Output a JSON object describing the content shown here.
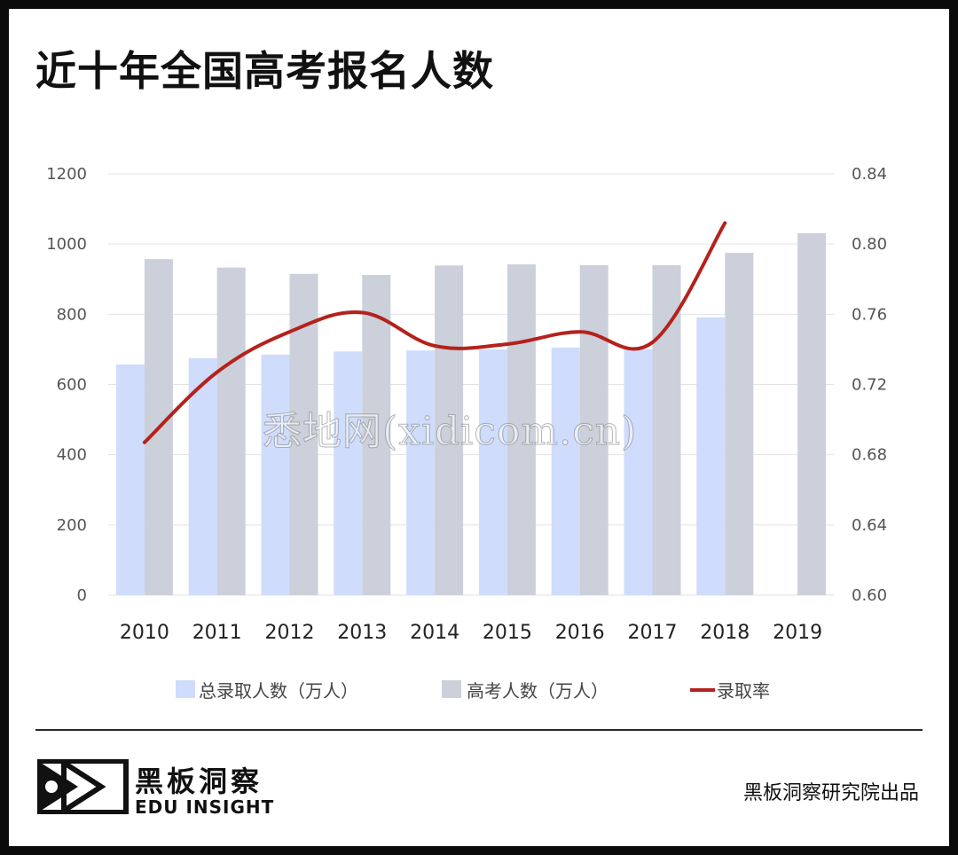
{
  "page": {
    "title": "近十年全国高考报名人数"
  },
  "watermark": "悉地网(xidicom.cn)",
  "footer": {
    "logo_cn": "黑板洞察",
    "logo_en": "EDU INSIGHT",
    "credit": "黑板洞察研究院出品"
  },
  "colors": {
    "admitted_bar": "#cfdcfb",
    "applicants_bar": "#cbd0da",
    "rate_line": "#b5211c",
    "grid": "#e3e3e3"
  },
  "chart_data": {
    "type": "bar",
    "title": "近十年全国高考报名人数",
    "categories": [
      "2010",
      "2011",
      "2012",
      "2013",
      "2014",
      "2015",
      "2016",
      "2017",
      "2018",
      "2019"
    ],
    "y_left": {
      "ticks": [
        "0",
        "200",
        "400",
        "600",
        "800",
        "1000",
        "1200"
      ],
      "range": [
        0,
        1200
      ]
    },
    "y_right": {
      "ticks": [
        "0.60",
        "0.64",
        "0.68",
        "0.72",
        "0.76",
        "0.80",
        "0.84"
      ],
      "range": [
        0.6,
        0.84
      ]
    },
    "series": [
      {
        "name": "总录取人数（万人）",
        "type": "bar",
        "axis": "left",
        "values": [
          657,
          675,
          685,
          694,
          697,
          700,
          705,
          700,
          791,
          null
        ]
      },
      {
        "name": "高考人数（万人）",
        "type": "bar",
        "axis": "left",
        "values": [
          957,
          933,
          915,
          912,
          939,
          942,
          940,
          940,
          975,
          1031
        ]
      },
      {
        "name": "录取率",
        "type": "line",
        "axis": "right",
        "values": [
          0.687,
          0.727,
          0.75,
          0.761,
          0.742,
          0.743,
          0.75,
          0.744,
          0.812,
          null
        ]
      }
    ],
    "legend_position": "bottom",
    "grid": true
  }
}
